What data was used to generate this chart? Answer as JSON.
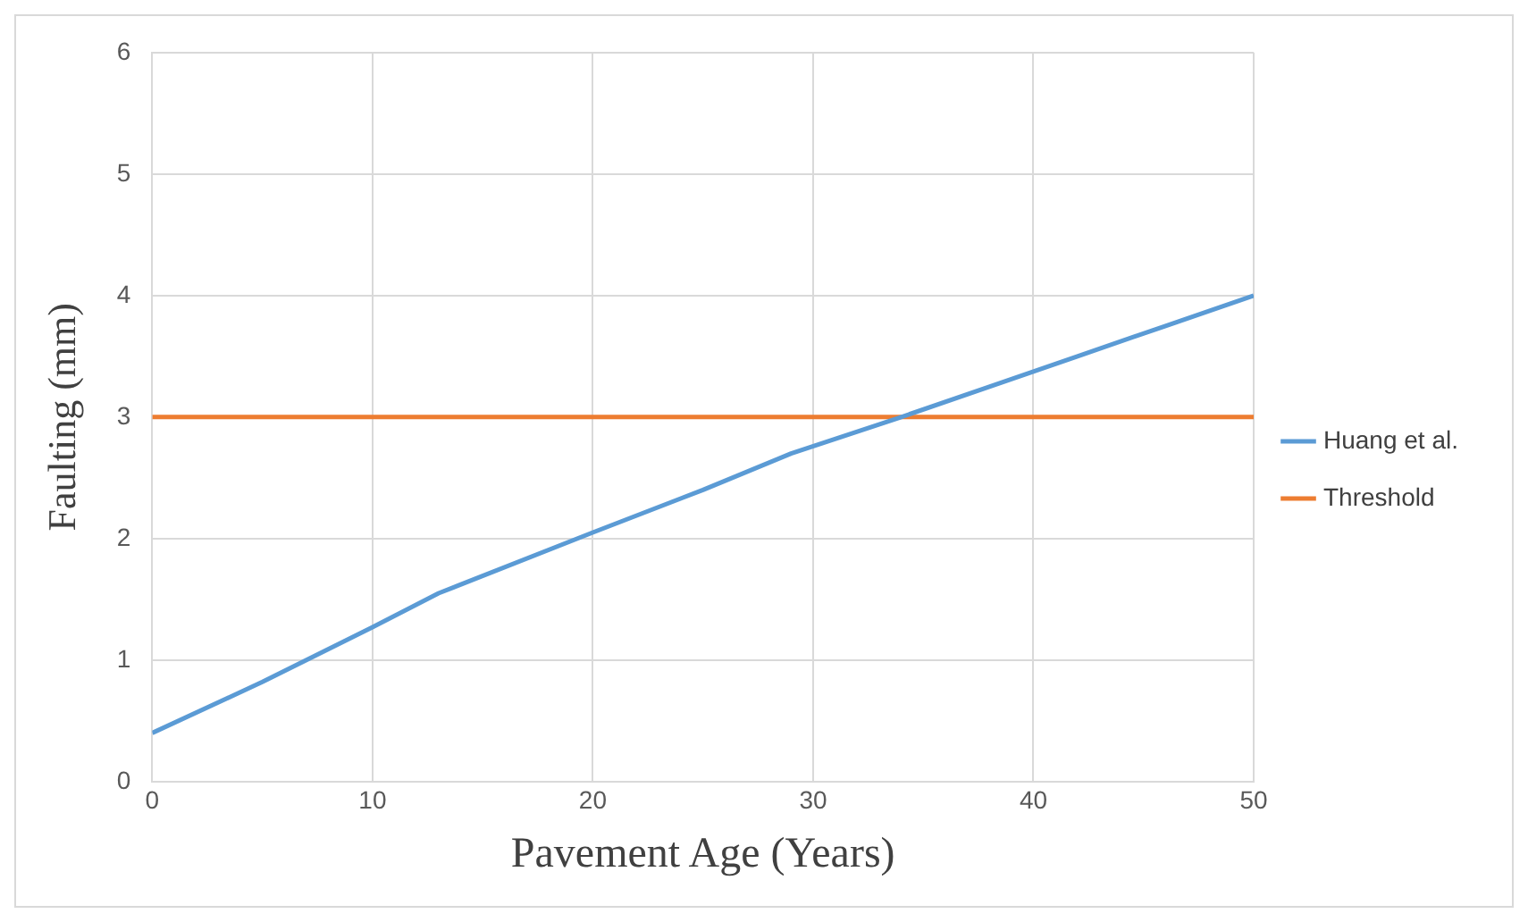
{
  "chart_data": {
    "type": "line",
    "xlabel": "Pavement Age (Years)",
    "ylabel": "Faulting (mm)",
    "xlim": [
      0,
      50
    ],
    "xticks": [
      0,
      10,
      20,
      30,
      40,
      50
    ],
    "ylim": [
      0,
      6
    ],
    "yticks": [
      0,
      1,
      2,
      3,
      4,
      5,
      6
    ],
    "grid": true,
    "legend": "right",
    "marker": "none",
    "line_style": "solid",
    "series": [
      {
        "name": "Huang et al.",
        "color": "#5b9bd5",
        "x": [
          0,
          5,
          10,
          13,
          20,
          25,
          29,
          34,
          38,
          42,
          46,
          50
        ],
        "values": [
          0.4,
          0.82,
          1.27,
          1.55,
          2.05,
          2.4,
          2.7,
          3.0,
          3.25,
          3.5,
          3.75,
          4.0
        ]
      },
      {
        "name": "Threshold",
        "color": "#ed7d31",
        "x": [
          0,
          50
        ],
        "values": [
          3,
          3
        ]
      }
    ]
  }
}
